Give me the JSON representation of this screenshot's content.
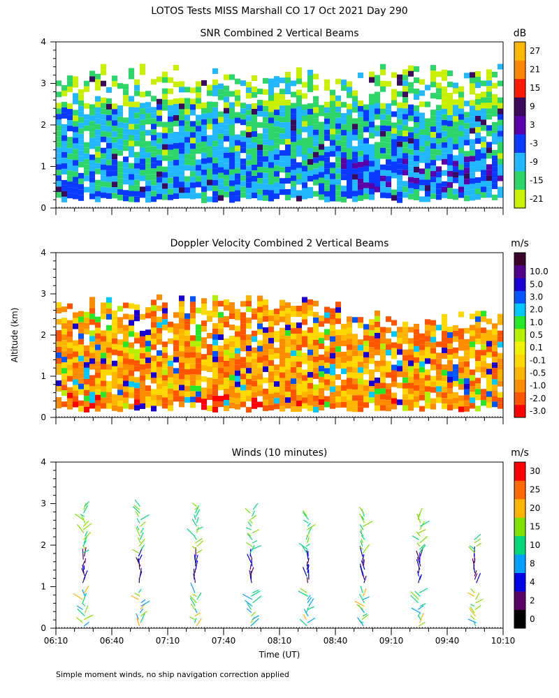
{
  "figure_title": "LOTOS Tests MISS Marshall CO  17 Oct 2021 Day 290",
  "y_axis_label": "Altitude (km)",
  "x_axis_label": "Time (UT)",
  "footnote": "Simple moment winds, no ship navigation correction applied",
  "colors": {
    "snr_scale": [
      "#c8f000",
      "#2ed66a",
      "#22b7ff",
      "#0a3aff",
      "#5a00a8",
      "#3c0a5a",
      "#ff1a00",
      "#ff8800",
      "#ffb800"
    ],
    "vel_scale": [
      "#ff0000",
      "#ff5500",
      "#ff8c00",
      "#ffb400",
      "#ffd800",
      "#f2f200",
      "#b4f000",
      "#28e628",
      "#00c8ff",
      "#0055ff",
      "#1a00d0",
      "#52008c",
      "#3c002d"
    ],
    "wind_scale": [
      "#000000",
      "#5a0066",
      "#0000e6",
      "#00a0ff",
      "#00d878",
      "#80e000",
      "#ffb400",
      "#ff6a00",
      "#ff0000"
    ]
  },
  "chart_data": [
    {
      "type": "heatmap",
      "title": "SNR Combined 2 Vertical Beams",
      "units": "dB",
      "x_ticks": [
        "06:10",
        "06:40",
        "07:10",
        "07:40",
        "08:10",
        "08:40",
        "09:10",
        "09:40",
        "10:10"
      ],
      "xlim_minutes_ut": [
        370,
        610
      ],
      "ylim": [
        0,
        4
      ],
      "y_ticks": [
        "0",
        "1",
        "2",
        "3",
        "4"
      ],
      "colorbar_labels": [
        "-21",
        "-15",
        "-9",
        "-3",
        "3",
        "9",
        "15",
        "21",
        "27"
      ],
      "data_altitude_range_km": [
        0.25,
        3.5
      ]
    },
    {
      "type": "heatmap",
      "title": "Doppler Velocity Combined 2 Vertical Beams",
      "units": "m/s",
      "x_ticks": [
        "06:10",
        "06:40",
        "07:10",
        "07:40",
        "08:10",
        "08:40",
        "09:10",
        "09:40",
        "10:10"
      ],
      "xlim_minutes_ut": [
        370,
        610
      ],
      "ylim": [
        0,
        4
      ],
      "y_ticks": [
        "0",
        "1",
        "2",
        "3",
        "4"
      ],
      "colorbar_labels": [
        "-3.0",
        "-2.0",
        "-1.0",
        "-0.5",
        "-0.1",
        "0.1",
        "0.5",
        "1.0",
        "2.0",
        "3.0",
        "5.0",
        "10.0"
      ],
      "data_altitude_range_km": [
        0.25,
        3.0
      ]
    },
    {
      "type": "scatter",
      "title": "Winds (10 minutes)",
      "units": "m/s",
      "x_ticks": [
        "06:10",
        "06:40",
        "07:10",
        "07:40",
        "08:10",
        "08:40",
        "09:10",
        "09:40",
        "10:10"
      ],
      "xlim_minutes_ut": [
        370,
        610
      ],
      "ylim": [
        0,
        4
      ],
      "y_ticks": [
        "0",
        "1",
        "2",
        "3",
        "4"
      ],
      "colorbar_labels": [
        "0",
        "2",
        "4",
        "8",
        "10",
        "15",
        "20",
        "25",
        "30"
      ],
      "profile_times_minutes_ut": [
        385,
        415,
        445,
        475,
        505,
        535,
        565,
        595
      ],
      "profile_top_km": [
        3.0,
        2.95,
        3.0,
        2.9,
        2.7,
        2.8,
        2.7,
        2.15
      ]
    }
  ]
}
